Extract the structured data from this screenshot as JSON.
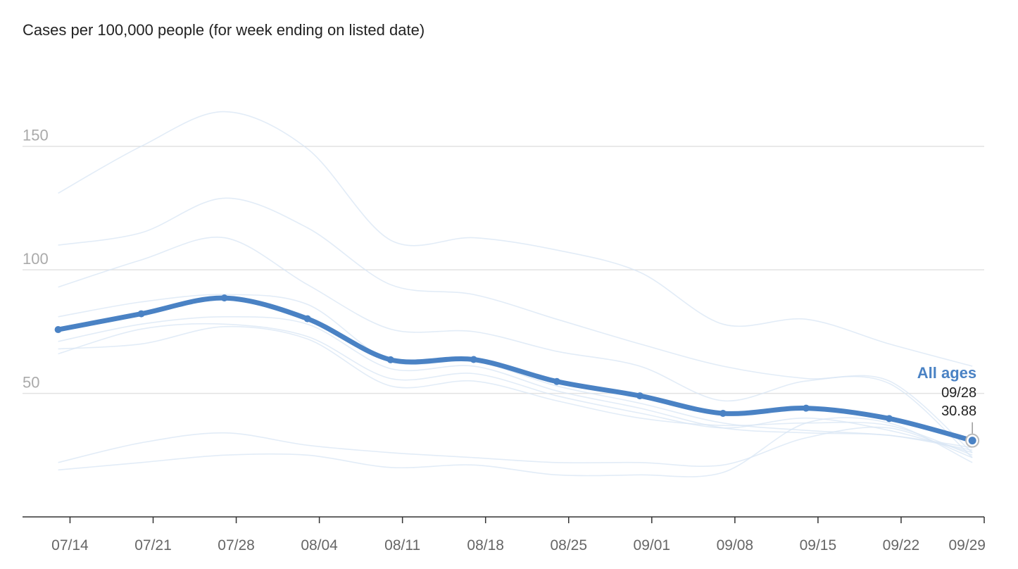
{
  "chart_data": {
    "type": "line",
    "title": "Cases per 100,000 people (for week ending on listed date)",
    "xlabel": "",
    "ylabel": "",
    "x_ticks": [
      "07/14",
      "07/21",
      "07/28",
      "08/04",
      "08/11",
      "08/18",
      "08/25",
      "09/01",
      "09/08",
      "09/15",
      "09/22",
      "09/29"
    ],
    "y_ticks": [
      50,
      100,
      150
    ],
    "ylim": [
      0,
      175
    ],
    "x_range": [
      "07/10",
      "09/29"
    ],
    "grid": true,
    "highlight_color": "#4a82c4",
    "background_color": "#d8e6f4",
    "series": [
      {
        "name": "All ages",
        "x": [
          "07/13",
          "07/20",
          "07/27",
          "08/03",
          "08/10",
          "08/17",
          "08/24",
          "08/31",
          "09/07",
          "09/14",
          "09/21",
          "09/28"
        ],
        "values": [
          75.8,
          82.2,
          88.6,
          80.2,
          63.6,
          63.7,
          54.8,
          49.0,
          41.9,
          44.0,
          39.8,
          30.88
        ]
      }
    ],
    "background_series": [
      {
        "values": [
          131,
          150,
          164,
          149,
          112,
          113,
          108,
          99,
          78,
          80,
          70,
          61
        ]
      },
      {
        "values": [
          110,
          115,
          129,
          117,
          94,
          90,
          80,
          70,
          61,
          56,
          55,
          26
        ]
      },
      {
        "values": [
          93,
          104,
          113,
          94,
          76,
          75,
          67,
          61,
          47,
          55,
          54,
          24
        ]
      },
      {
        "values": [
          81,
          87,
          90,
          86,
          63,
          63,
          53,
          46,
          38,
          35,
          33,
          28
        ]
      },
      {
        "values": [
          71,
          78,
          81,
          78,
          60,
          61,
          51,
          44,
          36,
          34,
          33,
          27
        ]
      },
      {
        "values": [
          68,
          70,
          77,
          72,
          53,
          55,
          47,
          40,
          37,
          38,
          37,
          25
        ]
      },
      {
        "values": [
          66,
          76,
          78,
          73,
          56,
          58,
          49,
          42,
          36,
          40,
          35,
          26
        ]
      },
      {
        "values": [
          22,
          30,
          34,
          29,
          26,
          24,
          22,
          22,
          21,
          32,
          36,
          24
        ]
      },
      {
        "values": [
          19,
          22,
          25,
          25,
          20,
          21,
          17,
          17,
          18,
          38,
          38,
          22
        ]
      }
    ],
    "annotation": {
      "series_label": "All ages",
      "date": "09/28",
      "value": "30.88"
    }
  }
}
